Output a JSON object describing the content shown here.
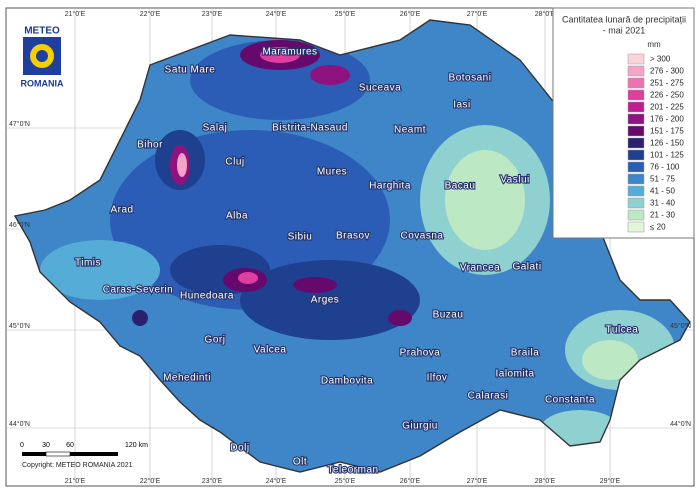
{
  "title": {
    "line1": "Cantitatea lunară de precipitații",
    "line2": "- mai 2021",
    "unit": "mm"
  },
  "legend": [
    {
      "label": "> 300",
      "color": "#fcd3da"
    },
    {
      "label": "276 - 300",
      "color": "#f5a3c6"
    },
    {
      "label": "251 - 275",
      "color": "#ee72b2"
    },
    {
      "label": "226 - 250",
      "color": "#de3f9f"
    },
    {
      "label": "201 - 225",
      "color": "#bd1f8e"
    },
    {
      "label": "176 - 200",
      "color": "#8f127f"
    },
    {
      "label": "151 - 175",
      "color": "#650a6c"
    },
    {
      "label": "126 - 150",
      "color": "#2b1f70"
    },
    {
      "label": "101 - 125",
      "color": "#1f3f8f"
    },
    {
      "label": "76 - 100",
      "color": "#2c5db6"
    },
    {
      "label": "51 - 75",
      "color": "#3f86c9"
    },
    {
      "label": "41 - 50",
      "color": "#55acd6"
    },
    {
      "label": "31 - 40",
      "color": "#8fd0d0"
    },
    {
      "label": "21 - 30",
      "color": "#bde8c4"
    },
    {
      "label": "≤ 20",
      "color": "#e3f6d9"
    }
  ],
  "logo": {
    "top": "METEO",
    "bottom": "ROMANIA"
  },
  "lon_labels": [
    "21°0'E",
    "22°0'E",
    "23°0'E",
    "24°0'E",
    "25°0'E",
    "26°0'E",
    "27°0'E",
    "28°0'E",
    "29°0'E"
  ],
  "lat_labels": [
    "47°0'N",
    "46°0'N",
    "45°0'N",
    "44°0'N"
  ],
  "counties": [
    "Satu Mare",
    "Maramures",
    "Botosani",
    "Suceava",
    "Iasi",
    "Salaj",
    "Bistrita-Nasaud",
    "Neamt",
    "Bihor",
    "Cluj",
    "Mures",
    "Harghita",
    "Bacau",
    "Vaslui",
    "Arad",
    "Alba",
    "Sibiu",
    "Brasov",
    "Covasna",
    "Vrancea",
    "Galati",
    "Timis",
    "Hunedoara",
    "Caras-Severin",
    "Arges",
    "Buzau",
    "Tulcea",
    "Gorj",
    "Valcea",
    "Prahova",
    "Braila",
    "Mehedinti",
    "Dambovita",
    "Ilfov",
    "Ialomita",
    "Dolj",
    "Calarasi",
    "Constanta",
    "Olt",
    "Giurgiu",
    "Teleorman"
  ],
  "scale": {
    "ticks": [
      "0",
      "30",
      "60",
      "120 km"
    ]
  },
  "copyright": "Copyright: METEO ROMANIA 2021"
}
